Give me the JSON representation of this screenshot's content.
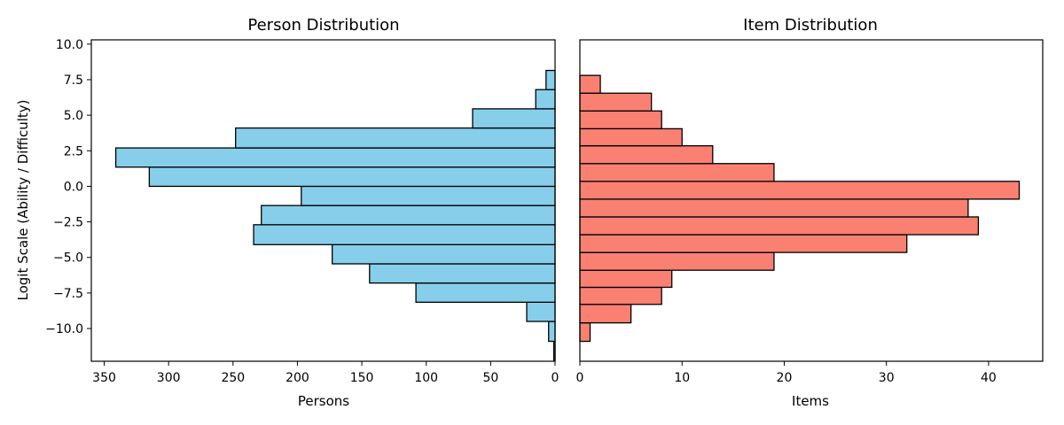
{
  "chart_data": [
    {
      "type": "bar",
      "orientation": "horizontal",
      "title": "Person Distribution",
      "xlabel": "Persons",
      "ylabel": "Logit Scale (Ability / Difficulty)",
      "x_inverted": true,
      "xlim": [
        360,
        0
      ],
      "ylim": [
        -12.3,
        10.3
      ],
      "xticks": [
        350,
        300,
        250,
        200,
        150,
        100,
        50,
        0
      ],
      "yticks": [
        10.0,
        7.5,
        5.0,
        2.5,
        0.0,
        -2.5,
        -5.0,
        -7.5,
        -10.0
      ],
      "yticklabels": [
        "10.0",
        "7.5",
        "5.0",
        "2.5",
        "0.0",
        "−2.5",
        "−5.0",
        "−7.5",
        "−10.0"
      ],
      "color": "#87ceeb",
      "bins": [
        {
          "low": -12.25,
          "high": -10.9,
          "value": 1
        },
        {
          "low": -10.9,
          "high": -9.5,
          "value": 5
        },
        {
          "low": -9.5,
          "high": -8.15,
          "value": 22
        },
        {
          "low": -8.15,
          "high": -6.8,
          "value": 108
        },
        {
          "low": -6.8,
          "high": -5.45,
          "value": 144
        },
        {
          "low": -5.45,
          "high": -4.1,
          "value": 173
        },
        {
          "low": -4.1,
          "high": -2.7,
          "value": 234
        },
        {
          "low": -2.7,
          "high": -1.35,
          "value": 228
        },
        {
          "low": -1.35,
          "high": 0.0,
          "value": 197
        },
        {
          "low": 0.0,
          "high": 1.35,
          "value": 315
        },
        {
          "low": 1.35,
          "high": 2.7,
          "value": 341
        },
        {
          "low": 2.7,
          "high": 4.1,
          "value": 248
        },
        {
          "low": 4.1,
          "high": 5.45,
          "value": 64
        },
        {
          "low": 5.45,
          "high": 6.8,
          "value": 15
        },
        {
          "low": 6.8,
          "high": 8.15,
          "value": 7
        }
      ]
    },
    {
      "type": "bar",
      "orientation": "horizontal",
      "title": "Item Distribution",
      "xlabel": "Items",
      "x_inverted": false,
      "xlim": [
        0,
        45.3
      ],
      "ylim": [
        -12.3,
        10.3
      ],
      "xticks": [
        0,
        10,
        20,
        30,
        40
      ],
      "color": "#fa8072",
      "bins": [
        {
          "low": -10.9,
          "high": -9.6,
          "value": 1
        },
        {
          "low": -9.6,
          "high": -8.3,
          "value": 5
        },
        {
          "low": -8.3,
          "high": -7.1,
          "value": 8
        },
        {
          "low": -7.1,
          "high": -5.9,
          "value": 9
        },
        {
          "low": -5.9,
          "high": -4.65,
          "value": 19
        },
        {
          "low": -4.65,
          "high": -3.4,
          "value": 32
        },
        {
          "low": -3.4,
          "high": -2.15,
          "value": 39
        },
        {
          "low": -2.15,
          "high": -0.9,
          "value": 38
        },
        {
          "low": -0.9,
          "high": 0.35,
          "value": 43
        },
        {
          "low": 0.35,
          "high": 1.6,
          "value": 19
        },
        {
          "low": 1.6,
          "high": 2.85,
          "value": 13
        },
        {
          "low": 2.85,
          "high": 4.05,
          "value": 10
        },
        {
          "low": 4.05,
          "high": 5.3,
          "value": 8
        },
        {
          "low": 5.3,
          "high": 6.55,
          "value": 7
        },
        {
          "low": 6.55,
          "high": 7.8,
          "value": 2
        }
      ]
    }
  ]
}
